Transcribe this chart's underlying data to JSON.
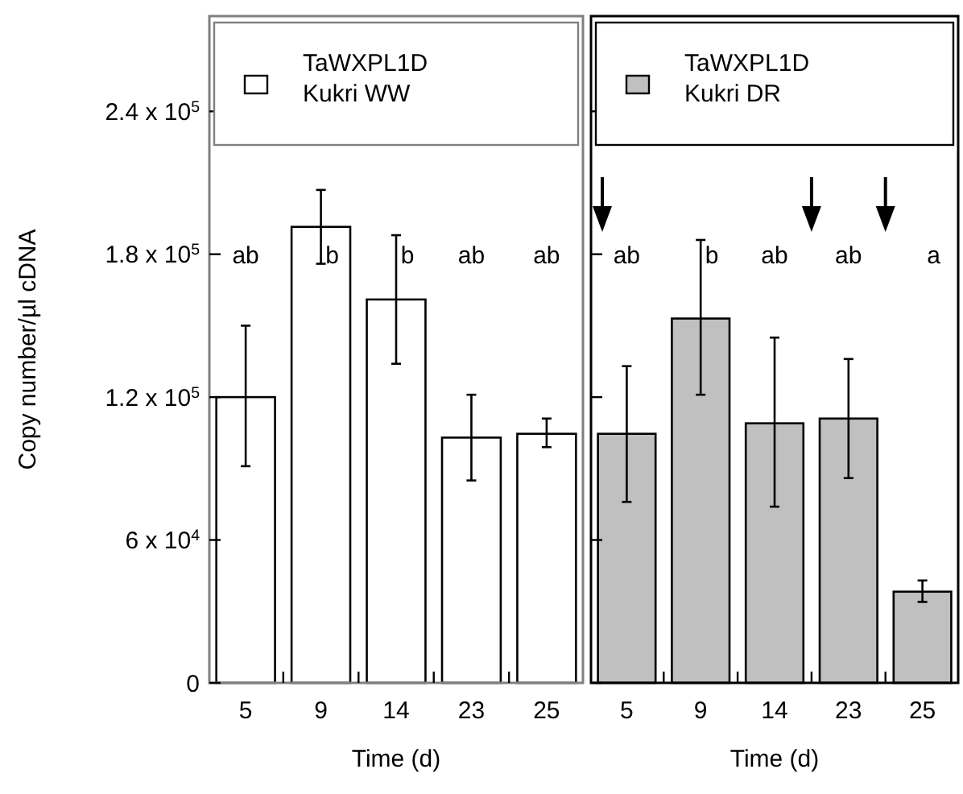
{
  "chart_data": [
    {
      "type": "bar",
      "categories": [
        "5",
        "9",
        "14",
        "23",
        "25"
      ],
      "xlabel": "Time (d)",
      "ylabel": "Copy number/µl cDNA",
      "series": [
        {
          "name": "TaWXPL1D Kukri WW",
          "color": "#ffffff",
          "values": [
            120000,
            191500,
            161000,
            103000,
            104600
          ],
          "errors": [
            [
              91000,
              150000
            ],
            [
              176000,
              207000
            ],
            [
              134000,
              188000
            ],
            [
              85000,
              121000
            ],
            [
              99000,
              111000
            ]
          ]
        }
      ],
      "ylim": [
        0,
        280000
      ],
      "yticks": [
        {
          "value": 0,
          "label": "0"
        },
        {
          "value": 60000,
          "label": "6 x 10$^{4}$"
        },
        {
          "value": 120000,
          "label": "1.2 x 10$^{5}$"
        },
        {
          "value": 180000,
          "label": "1.8 x 10$^{5}$"
        },
        {
          "value": 240000,
          "label": "2.4 x 10$^{5}$"
        }
      ],
      "legend": "top",
      "annotations": [
        "ab",
        "b",
        "b",
        "ab",
        "ab"
      ]
    },
    {
      "type": "bar",
      "categories": [
        "5",
        "9",
        "14",
        "23",
        "25"
      ],
      "xlabel": "Time (d)",
      "series": [
        {
          "name": "TaWXPL1D Kukri DR",
          "color": "#c0c0c0",
          "values": [
            104600,
            153000,
            109000,
            111000,
            38300
          ],
          "errors": [
            [
              76000,
              133000
            ],
            [
              121000,
              186000
            ],
            [
              74000,
              145000
            ],
            [
              86000,
              136000
            ],
            [
              34000,
              43000
            ]
          ]
        }
      ],
      "ylim": [
        0,
        280000
      ],
      "yticks": [
        {
          "value": 0,
          "label": null
        },
        {
          "value": 60000,
          "label": null
        },
        {
          "value": 120000,
          "label": null
        },
        {
          "value": 180000,
          "label": null
        },
        {
          "value": 240000,
          "label": null
        }
      ],
      "tick_labels": "x",
      "legend": "top",
      "annotations": [
        "ab",
        "b",
        "ab",
        "ab",
        "a"
      ]
    }
  ]
}
